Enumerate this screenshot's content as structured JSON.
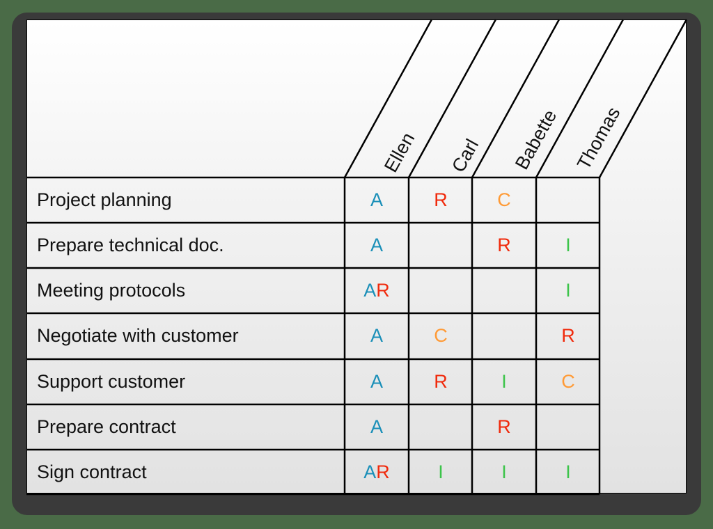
{
  "colors": {
    "A": "#1a8fb8",
    "R": "#f02a0c",
    "C": "#ff9a35",
    "I": "#3cc44a"
  },
  "people": [
    "Ellen",
    "Carl",
    "Babette",
    "Thomas"
  ],
  "tasks": [
    {
      "name": "Project planning",
      "cells": [
        [
          "A"
        ],
        [
          "R"
        ],
        [
          "C"
        ],
        []
      ]
    },
    {
      "name": "Prepare technical doc.",
      "cells": [
        [
          "A"
        ],
        [],
        [
          "R"
        ],
        [
          "I"
        ]
      ]
    },
    {
      "name": "Meeting protocols",
      "cells": [
        [
          "A",
          "R"
        ],
        [],
        [],
        [
          "I"
        ]
      ]
    },
    {
      "name": "Negotiate with customer",
      "cells": [
        [
          "A"
        ],
        [
          "C"
        ],
        [],
        [
          "R"
        ]
      ]
    },
    {
      "name": "Support customer",
      "cells": [
        [
          "A"
        ],
        [
          "R"
        ],
        [
          "I"
        ],
        [
          "C"
        ]
      ]
    },
    {
      "name": "Prepare contract",
      "cells": [
        [
          "A"
        ],
        [],
        [
          "R"
        ],
        []
      ]
    },
    {
      "name": "Sign contract",
      "cells": [
        [
          "A",
          "R"
        ],
        [
          "I"
        ],
        [
          "I"
        ],
        [
          "I"
        ]
      ]
    }
  ]
}
